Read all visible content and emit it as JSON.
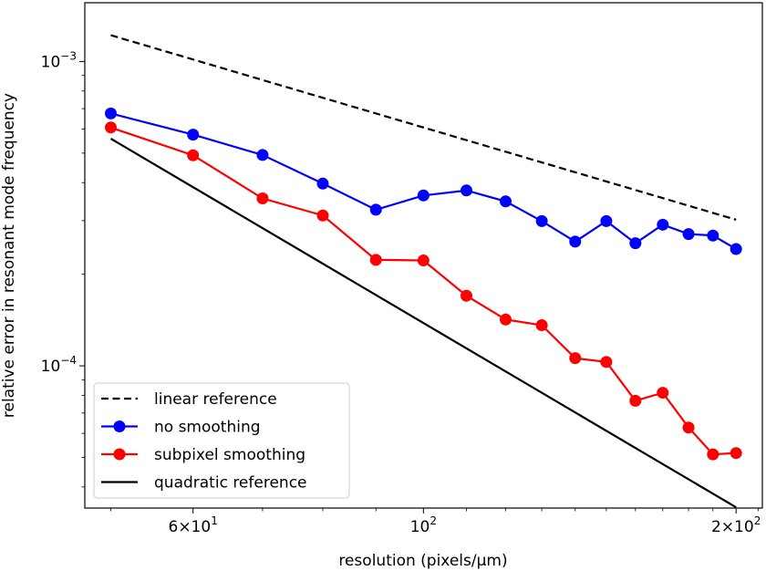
{
  "chart_data": {
    "type": "line",
    "xlabel": "resolution (pixels/µm)",
    "ylabel": "relative error in resonant mode frequency",
    "xscale": "log",
    "yscale": "log",
    "xlim": [
      47.2,
      212
    ],
    "ylim": [
      3.41e-05,
      0.00156
    ],
    "xticks": [
      {
        "value": 60,
        "base": "6×10",
        "exp": "1"
      },
      {
        "value": 100,
        "base": "10",
        "exp": "2"
      },
      {
        "value": 200,
        "base": "2×10",
        "exp": "2"
      }
    ],
    "yticks": [
      {
        "value": 0.0001,
        "base": "10",
        "exp": "−4"
      },
      {
        "value": 0.001,
        "base": "10",
        "exp": "−3"
      }
    ],
    "grid": false,
    "legend_position": "lower-left",
    "series": [
      {
        "name": "linear reference",
        "color": "#000000",
        "style": "dashed",
        "marker": false,
        "x": [
          50,
          200
        ],
        "y": [
          0.00122,
          0.000302
        ]
      },
      {
        "name": "no smoothing",
        "color": "#0000ff",
        "style": "solid",
        "marker": true,
        "x": [
          50,
          60,
          70,
          80,
          90,
          100,
          110,
          120,
          130,
          140,
          150,
          160,
          170,
          180,
          190,
          200
        ],
        "y": [
          0.000675,
          0.000575,
          0.000493,
          0.000397,
          0.000326,
          0.000363,
          0.000377,
          0.000347,
          0.000299,
          0.000256,
          0.000299,
          0.000253,
          0.000291,
          0.000271,
          0.000268,
          0.000242
        ]
      },
      {
        "name": "subpixel smoothing",
        "color": "#ff0000",
        "style": "solid",
        "marker": true,
        "x": [
          50,
          60,
          70,
          80,
          90,
          100,
          110,
          120,
          130,
          140,
          150,
          160,
          170,
          180,
          190,
          200
        ],
        "y": [
          0.000607,
          0.000492,
          0.000355,
          0.000312,
          0.000223,
          0.000222,
          0.00017,
          0.000142,
          0.000136,
          0.000106,
          0.000103,
          7.68e-05,
          8.16e-05,
          6.27e-05,
          5.12e-05,
          5.17e-05
        ]
      },
      {
        "name": "quadratic reference",
        "color": "#000000",
        "style": "solid",
        "marker": false,
        "x": [
          50,
          200
        ],
        "y": [
          0.000558,
          3.43e-05
        ]
      }
    ]
  }
}
